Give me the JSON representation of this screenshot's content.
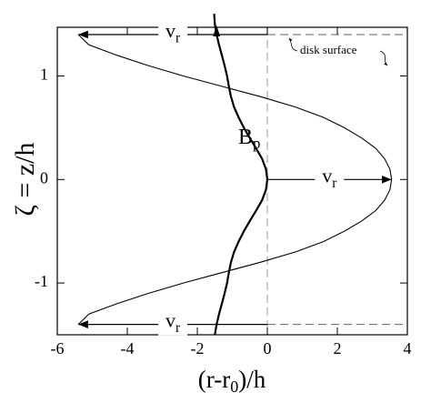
{
  "chart_data": {
    "type": "line",
    "xlabel": {
      "text": "(r-r",
      "sub": "0",
      "tail": ")/h"
    },
    "ylabel": "ζ = z/h",
    "xlim": [
      -6,
      4
    ],
    "ylim": [
      -1.5,
      1.47
    ],
    "xticks": [
      -6,
      -4,
      -2,
      0,
      2,
      4
    ],
    "yticks": [
      -1,
      0,
      1
    ],
    "series": [
      {
        "name": "v",
        "sub": "r",
        "color": "#000000",
        "x": [
          -5.4,
          -5.1,
          -4.3,
          -3.4,
          -2.4,
          -1.3,
          -0.2,
          0.8,
          1.6,
          2.2,
          2.7,
          3.1,
          3.35,
          3.5,
          3.55,
          3.5,
          3.35,
          3.1,
          2.7,
          2.2,
          1.6,
          0.8,
          -0.2,
          -1.3,
          -2.4,
          -3.4,
          -4.3,
          -5.1,
          -5.4
        ],
        "y": [
          -1.4,
          -1.3,
          -1.2,
          -1.1,
          -1.0,
          -0.9,
          -0.8,
          -0.7,
          -0.6,
          -0.5,
          -0.4,
          -0.3,
          -0.2,
          -0.1,
          0,
          0.1,
          0.2,
          0.3,
          0.4,
          0.5,
          0.6,
          0.7,
          0.8,
          0.9,
          1.0,
          1.1,
          1.2,
          1.3,
          1.4
        ]
      },
      {
        "name": "B",
        "sub": "p",
        "color": "#000000",
        "x": [
          -1.5,
          -1.45,
          -1.38,
          -1.3,
          -1.22,
          -1.15,
          -1.1,
          -1.04,
          -0.95,
          -0.82,
          -0.67,
          -0.5,
          -0.32,
          -0.15,
          -0.04,
          0,
          -0.04,
          -0.15,
          -0.32,
          -0.5,
          -0.67,
          -0.82,
          -0.95,
          -1.04,
          -1.1,
          -1.15,
          -1.22,
          -1.3,
          -1.38,
          -1.45,
          -1.5,
          -1.52
        ],
        "y": [
          -1.5,
          -1.4,
          -1.3,
          -1.2,
          -1.1,
          -1.0,
          -0.9,
          -0.8,
          -0.7,
          -0.6,
          -0.5,
          -0.4,
          -0.3,
          -0.2,
          -0.1,
          0,
          0.1,
          0.2,
          0.3,
          0.4,
          0.5,
          0.6,
          0.7,
          0.8,
          0.9,
          1.0,
          1.1,
          1.2,
          1.3,
          1.4,
          1.5,
          1.6
        ]
      }
    ],
    "annotation": "disk surface"
  }
}
